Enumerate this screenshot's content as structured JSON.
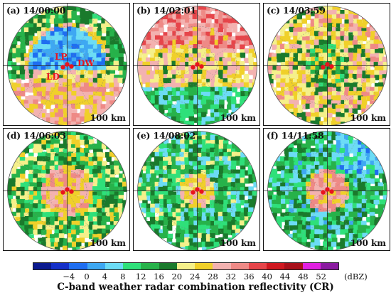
{
  "panels": [
    {
      "label": "(a) 14/00:00",
      "scale": "100 km",
      "seed": 11,
      "mode": "a"
    },
    {
      "label": "(b) 14/02:01",
      "scale": "100 km",
      "seed": 23,
      "mode": "b"
    },
    {
      "label": "(c) 14/03:59",
      "scale": "100 km",
      "seed": 37,
      "mode": "c"
    },
    {
      "label": "(d) 14/06:03",
      "scale": "100 km",
      "seed": 41,
      "mode": "d"
    },
    {
      "label": "(e) 14/08:02",
      "scale": "100 km",
      "seed": 53,
      "mode": "e"
    },
    {
      "label": "(f) 14/11:58",
      "scale": "100 km",
      "seed": 67,
      "mode": "f"
    }
  ],
  "site_labels": {
    "lp": "LP",
    "dw": "DW",
    "ld": "LD"
  },
  "colorbar": {
    "colors": [
      "#0b1a8f",
      "#1530c8",
      "#1f6ef0",
      "#3ea8f2",
      "#6cdcf5",
      "#2fe07a",
      "#27b24a",
      "#1a7a2c",
      "#f5f08a",
      "#f0d02a",
      "#f3b2b0",
      "#ee8a86",
      "#e6454a",
      "#cf1820",
      "#a8101a",
      "#e020e0",
      "#8a1aa0"
    ],
    "ticks": [
      "−4",
      "0",
      "4",
      "8",
      "12",
      "16",
      "20",
      "24",
      "28",
      "32",
      "36",
      "40",
      "44",
      "48",
      "52"
    ],
    "unit": "(dBZ)"
  },
  "caption": "C-band weather radar combination reflectivity (CR)"
}
